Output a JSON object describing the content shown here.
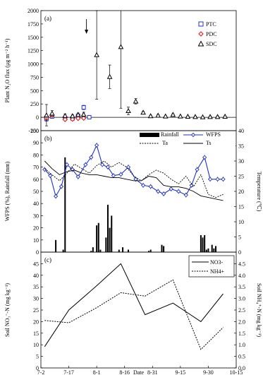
{
  "chart_data": [
    {
      "panel": "(a)",
      "type": "scatter",
      "ylabel": "Plant N₂O flux (μg m⁻² h⁻¹)",
      "ylim": [
        -250,
        2000
      ],
      "yticks": [
        "-250",
        "0",
        "250",
        "500",
        "750",
        "1000",
        "1250",
        "1500",
        "1750",
        "2000"
      ],
      "xlim": [
        0,
        105
      ],
      "legend": {
        "position": "top-right",
        "entries": [
          "PTC",
          "PDC",
          "SDC"
        ]
      },
      "series": [
        {
          "name": "PTC",
          "marker": "square",
          "color": "#2233dd",
          "x": [
            3,
            6,
            13,
            17,
            20,
            23,
            26
          ],
          "y": [
            -30,
            15,
            -15,
            -20,
            25,
            185,
            2
          ],
          "err": [
            40,
            30,
            20,
            20,
            20,
            40,
            10
          ]
        },
        {
          "name": "PDC",
          "marker": "diamond",
          "color": "#dd1111",
          "x": [
            3,
            6,
            13,
            17,
            20,
            23
          ],
          "y": [
            -15,
            35,
            -40,
            -35,
            -20,
            -15
          ],
          "err": [
            20,
            20,
            10,
            10,
            10,
            10
          ]
        },
        {
          "name": "SDC",
          "marker": "triangle",
          "color": "#000000",
          "x": [
            3,
            6,
            13,
            17,
            20,
            23,
            30,
            37,
            43,
            47,
            51,
            55,
            59,
            63,
            67,
            71,
            75,
            79,
            83,
            87,
            91,
            95,
            99
          ],
          "y": [
            40,
            75,
            30,
            25,
            50,
            55,
            1170,
            760,
            1320,
            120,
            300,
            90,
            25,
            35,
            20,
            50,
            20,
            15,
            10,
            5,
            10,
            10,
            15
          ],
          "err": [
            200,
            50,
            30,
            20,
            30,
            40,
            830,
            220,
            1150,
            70,
            50,
            20,
            15,
            15,
            10,
            15,
            10,
            10,
            10,
            5,
            10,
            10,
            10
          ]
        }
      ],
      "annotation_arrow_x": 24.5
    },
    {
      "panel": "(b)",
      "type": "line",
      "ylabel": "WFPS (%), Rainfall (mm)",
      "y2label": "Temperature (℃)",
      "ylim": [
        0,
        100
      ],
      "y2lim": [
        0,
        40
      ],
      "yticks": [
        "0",
        "10",
        "20",
        "30",
        "40",
        "50",
        "60",
        "70",
        "80",
        "90",
        "100"
      ],
      "y2ticks": [
        "0",
        "5",
        "10",
        "15",
        "20",
        "25",
        "30",
        "35",
        "40"
      ],
      "xlim": [
        0,
        105
      ],
      "legend": {
        "position": "top-right",
        "entries": [
          "Rainfall",
          "WFPS",
          "Ta",
          "Ts"
        ]
      },
      "series": [
        {
          "name": "Rainfall",
          "kind": "bar",
          "color": "#000000",
          "x": [
            8,
            12,
            13,
            27,
            28,
            30,
            31,
            32,
            35,
            36,
            37,
            38,
            42,
            44,
            47,
            58,
            59,
            65,
            66,
            86,
            87,
            88,
            89,
            90,
            92,
            93,
            94
          ],
          "y": [
            10,
            2,
            78,
            1,
            4,
            22,
            24,
            2,
            12,
            39,
            20,
            30,
            2,
            4,
            2,
            1,
            2,
            6,
            5,
            14,
            12,
            14,
            2,
            3,
            6,
            3,
            5
          ]
        },
        {
          "name": "WFPS",
          "kind": "line-markers",
          "color": "#2233bb",
          "x": [
            2,
            5,
            8,
            11,
            14,
            17,
            20,
            24,
            27,
            30,
            33,
            36,
            39,
            43,
            47,
            51,
            55,
            59,
            63,
            66,
            70,
            74,
            78,
            81,
            84,
            88,
            91,
            95,
            98
          ],
          "y": [
            68,
            63,
            46,
            54,
            72,
            68,
            62,
            72,
            78,
            88,
            72,
            70,
            63,
            64,
            70,
            60,
            55,
            54,
            50,
            48,
            52,
            50,
            47,
            55,
            68,
            78,
            60,
            60,
            60
          ]
        },
        {
          "name": "Ta",
          "kind": "dotted",
          "color": "#000000",
          "axis": "right",
          "x": [
            2,
            6,
            10,
            14,
            18,
            22,
            26,
            30,
            34,
            38,
            42,
            46,
            50,
            54,
            58,
            62,
            66,
            70,
            74,
            78,
            82,
            86,
            90,
            94,
            98
          ],
          "y": [
            27.5,
            25.5,
            23.5,
            26,
            29,
            27.5,
            26,
            28.5,
            30,
            28,
            29.5,
            28,
            25,
            23.5,
            25.5,
            27,
            26,
            24,
            22.5,
            25,
            21.5,
            25.5,
            19,
            18,
            19
          ]
        },
        {
          "name": "Ts",
          "kind": "solid",
          "color": "#000000",
          "axis": "right",
          "x": [
            2,
            6,
            10,
            14,
            18,
            22,
            26,
            30,
            34,
            38,
            42,
            46,
            50,
            54,
            58,
            62,
            66,
            70,
            74,
            78,
            82,
            86,
            90,
            94,
            98
          ],
          "y": [
            30,
            27.5,
            25.5,
            26.5,
            27,
            26,
            25.5,
            25.5,
            25,
            24.5,
            24.5,
            24,
            23.5,
            23.5,
            25,
            24.5,
            22,
            21.5,
            21.5,
            21,
            20,
            18.5,
            18,
            17.5,
            17
          ]
        }
      ]
    },
    {
      "panel": "(c)",
      "type": "line",
      "ylabel": "Soil NO₃⁻-N (mg kg⁻¹)",
      "y2label": "Soil NH₄⁺-N (mg kg⁻¹)",
      "ylim": [
        0,
        50
      ],
      "y2lim": [
        0,
        5
      ],
      "yticks": [
        "0",
        "5",
        "10",
        "15",
        "20",
        "25",
        "30",
        "35",
        "40",
        "45"
      ],
      "y2ticks": [
        "0.0",
        "0.5",
        "1.0",
        "1.5",
        "2.0",
        "2.5",
        "3.0",
        "3.5",
        "4.0",
        "4.5"
      ],
      "xlabel": "Date",
      "xticks": [
        "7-2",
        "7-17",
        "8-1",
        "8-16",
        "8-31",
        "9-15",
        "9-30",
        "10-15"
      ],
      "xlim": [
        0,
        105
      ],
      "legend": {
        "position": "top-right",
        "entries": [
          "NO3-",
          "NH4+"
        ]
      },
      "series": [
        {
          "name": "NO3-",
          "kind": "solid",
          "axis": "left",
          "x": [
            2,
            15,
            30,
            43,
            56,
            71,
            86,
            98
          ],
          "y": [
            9.2,
            25,
            35.5,
            45,
            23,
            28,
            20,
            32
          ]
        },
        {
          "name": "NH4+",
          "kind": "dotted",
          "axis": "right",
          "x": [
            2,
            15,
            30,
            43,
            56,
            71,
            86,
            98
          ],
          "y": [
            2.05,
            1.95,
            2.6,
            3.25,
            3.1,
            3.8,
            0.8,
            1.75
          ]
        }
      ]
    }
  ]
}
